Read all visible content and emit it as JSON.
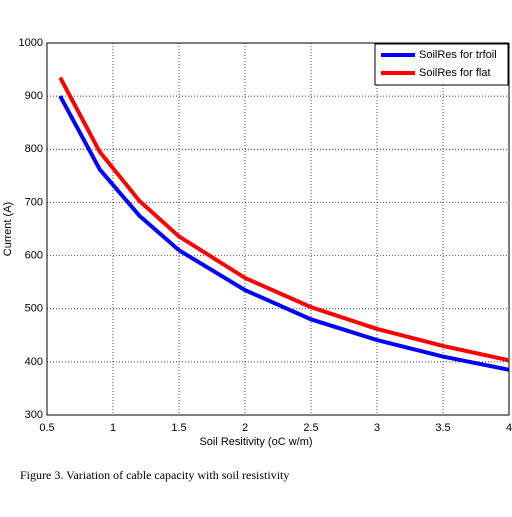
{
  "chart_data": {
    "type": "line",
    "x_label": "Soil Resitivity (oC w/m)",
    "y_label": "Current (A)",
    "caption": "Figure 3. Variation of cable capacity with soil resistivity",
    "x": [
      0.6,
      0.9,
      1.2,
      1.5,
      2,
      2.5,
      3,
      3.5,
      4
    ],
    "series": [
      {
        "name": "SoilRes for trfoil",
        "color": "#0000ff",
        "values": [
          900,
          762,
          675,
          610,
          535,
          480,
          441,
          410,
          385
        ]
      },
      {
        "name": "SoilRes for flat",
        "color": "#ff0000",
        "values": [
          935,
          795,
          703,
          636,
          558,
          503,
          462,
          430,
          403
        ]
      }
    ],
    "xlim": [
      0.5,
      4
    ],
    "xticks": [
      0.5,
      1,
      1.5,
      2,
      2.5,
      3,
      3.5,
      4
    ],
    "ylim": [
      300,
      1000
    ],
    "yticks": [
      300,
      400,
      500,
      600,
      700,
      800,
      900,
      1000
    ],
    "grid": true,
    "legend": "upper right"
  }
}
